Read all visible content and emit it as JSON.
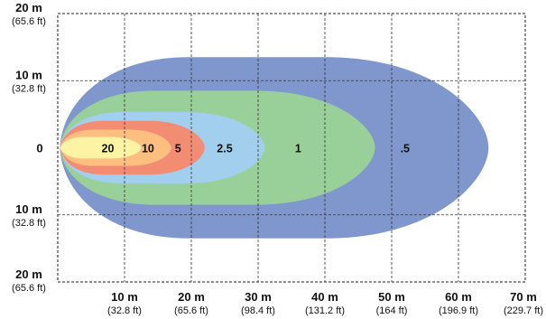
{
  "chart_data": {
    "type": "area",
    "title": "",
    "xlabel": "",
    "ylabel": "",
    "x_unit": "m",
    "y_unit": "m",
    "xlim": [
      0,
      70
    ],
    "ylim": [
      -20,
      20
    ],
    "grid": true,
    "x_ticks": [
      {
        "value": 10,
        "main": "10 m",
        "sub": "(32.8 ft)"
      },
      {
        "value": 20,
        "main": "20 m",
        "sub": "(65.6 ft)"
      },
      {
        "value": 30,
        "main": "30 m",
        "sub": "(98.4 ft)"
      },
      {
        "value": 40,
        "main": "40 m",
        "sub": "(131.2 ft)"
      },
      {
        "value": 50,
        "main": "50 m",
        "sub": "(164 ft)"
      },
      {
        "value": 60,
        "main": "60 m",
        "sub": "(196.9 ft)"
      },
      {
        "value": 70,
        "main": "70 m",
        "sub": "(229.7 ft)"
      }
    ],
    "y_ticks": [
      {
        "value": 20,
        "main": "20 m",
        "sub": "(65.6 ft)"
      },
      {
        "value": 10,
        "main": "10 m",
        "sub": "(32.8 ft)"
      },
      {
        "value": 0,
        "main": "0",
        "sub": ""
      },
      {
        "value": -10,
        "main": "10 m",
        "sub": "(32.8 ft)"
      },
      {
        "value": -20,
        "main": "20 m",
        "sub": "(65.6 ft)"
      }
    ],
    "isolines": [
      {
        "label": ".5",
        "color": "#7f97cc",
        "reach_m": 64.5,
        "half_width_m": 13.5,
        "label_x_m": 52
      },
      {
        "label": "1",
        "color": "#99cf98",
        "reach_m": 47.5,
        "half_width_m": 8.5,
        "label_x_m": 36
      },
      {
        "label": "2.5",
        "color": "#a3cfef",
        "reach_m": 31,
        "half_width_m": 5.3,
        "label_x_m": 25
      },
      {
        "label": "5",
        "color": "#f28c73",
        "reach_m": 22,
        "half_width_m": 4.0,
        "label_x_m": 18
      },
      {
        "label": "10",
        "color": "#fdbf80",
        "reach_m": 17,
        "half_width_m": 2.7,
        "label_x_m": 13.5
      },
      {
        "label": "20",
        "color": "#fdf3a4",
        "reach_m": 12.5,
        "half_width_m": 1.6,
        "label_x_m": 7.5
      }
    ]
  }
}
